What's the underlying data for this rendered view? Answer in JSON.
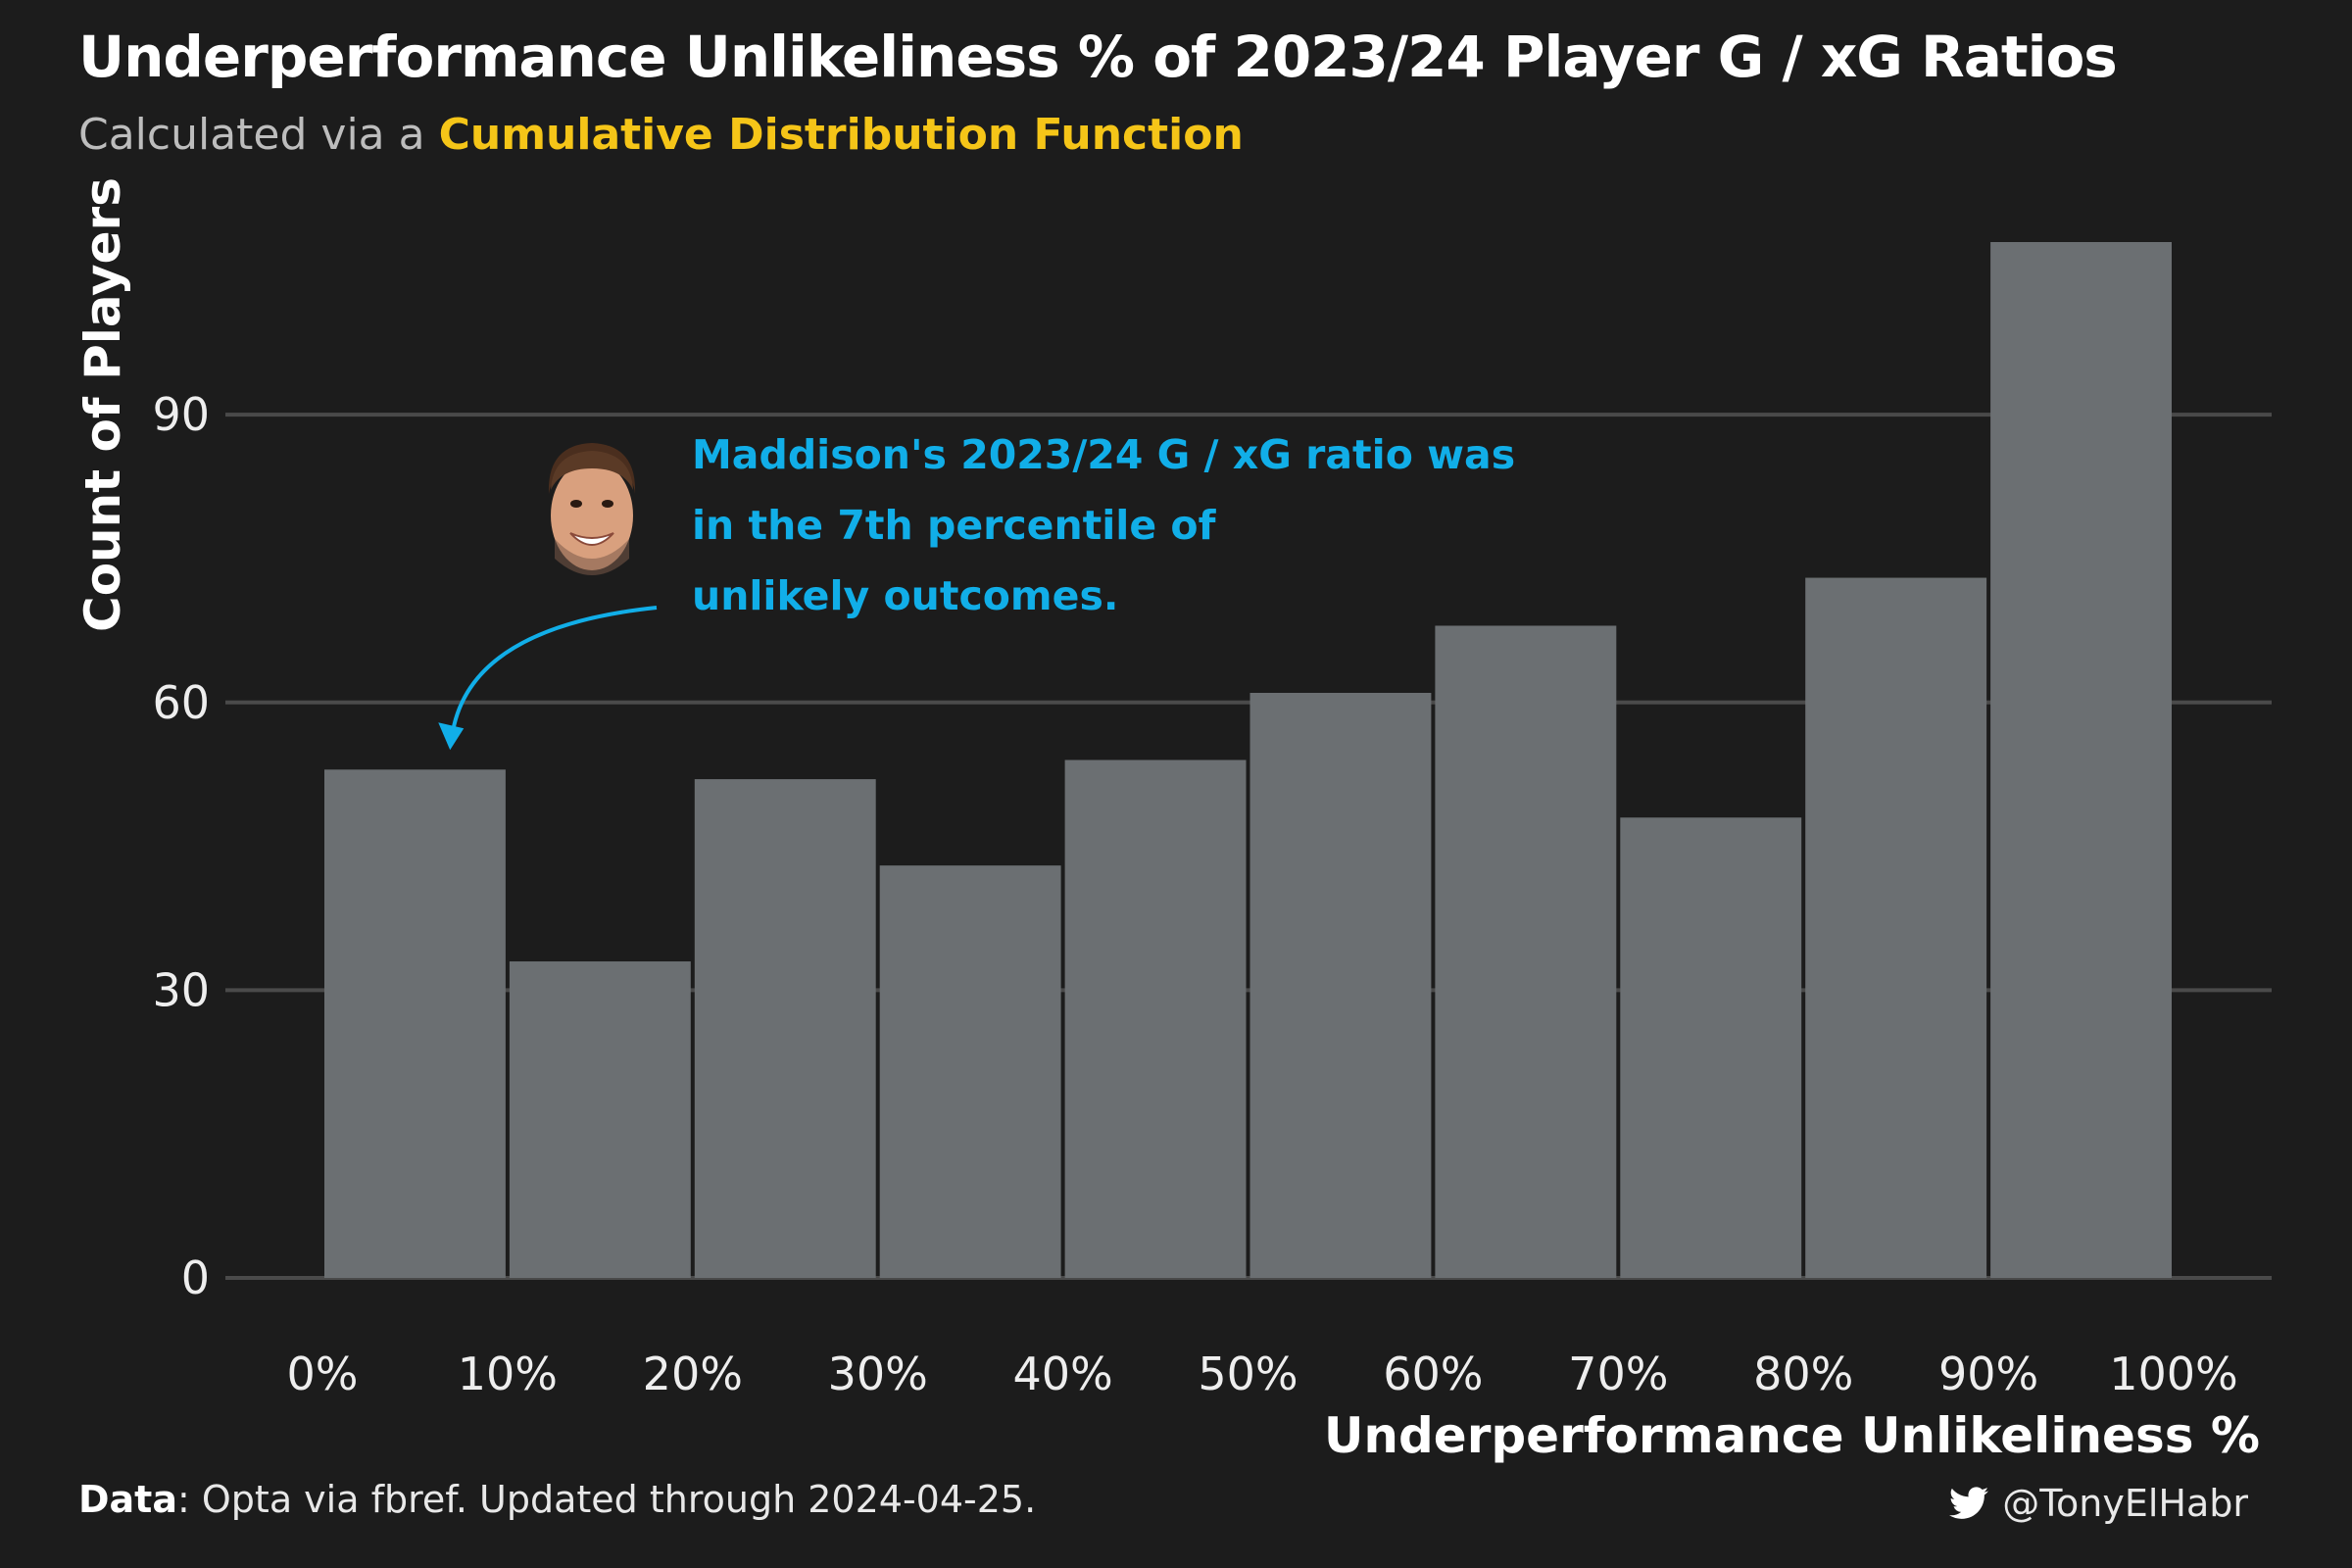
{
  "header": {
    "title": "Underperformance Unlikeliness % of 2023/24 Player G / xG Ratios",
    "subtitle_prefix": "Calculated via a ",
    "subtitle_highlight": "Cumulative Distribution Function"
  },
  "annotation": {
    "lines": [
      "Maddison's 2023/24 G / xG ratio was",
      "in the 7th percentile of",
      "unlikely outcomes."
    ],
    "target_x": 0.07,
    "color": "#11aee8"
  },
  "footer": {
    "data_label": "Data",
    "data_text": ": Opta via fbref. Updated through 2024-04-25.",
    "handle": "@TonyElHabr",
    "handle_icon": "twitter-bird-icon"
  },
  "colors": {
    "background": "#1c1c1c",
    "bar": "#6b6f72",
    "grid": "#4a4a4a",
    "highlight": "#f5c518",
    "annotation": "#11aee8"
  },
  "chart_data": {
    "type": "bar",
    "xlabel": "Underperformance Unlikeliness %",
    "ylabel": "Count of Players",
    "x_ticks": [
      "0%",
      "10%",
      "20%",
      "30%",
      "40%",
      "50%",
      "60%",
      "70%",
      "80%",
      "90%",
      "100%"
    ],
    "y_ticks": [
      0,
      30,
      60,
      90
    ],
    "ylim": [
      0,
      108
    ],
    "grid": "horizontal",
    "bins": [
      {
        "from": 0.0,
        "to": 0.1,
        "count": 53
      },
      {
        "from": 0.1,
        "to": 0.2,
        "count": 33
      },
      {
        "from": 0.2,
        "to": 0.3,
        "count": 52
      },
      {
        "from": 0.3,
        "to": 0.4,
        "count": 43
      },
      {
        "from": 0.4,
        "to": 0.5,
        "count": 54
      },
      {
        "from": 0.5,
        "to": 0.6,
        "count": 61
      },
      {
        "from": 0.6,
        "to": 0.7,
        "count": 68
      },
      {
        "from": 0.7,
        "to": 0.8,
        "count": 48
      },
      {
        "from": 0.8,
        "to": 0.9,
        "count": 73
      },
      {
        "from": 0.9,
        "to": 1.0,
        "count": 108
      }
    ]
  }
}
